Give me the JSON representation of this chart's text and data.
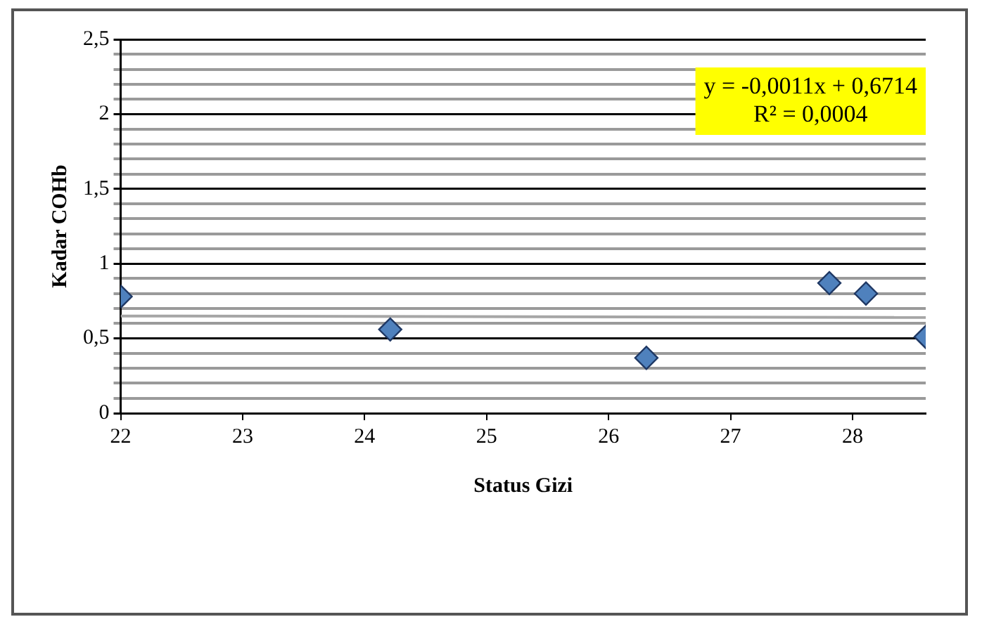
{
  "chart_data": {
    "type": "scatter",
    "xlabel": "Status Gizi",
    "ylabel": "Kadar COHb",
    "x": [
      22,
      24.21,
      26.31,
      27.81,
      28.11,
      28.6
    ],
    "series": [
      {
        "color": "#4f81bd",
        "values": [
          0.78,
          0.56,
          0.37,
          0.87,
          0.8,
          0.51
        ],
        "marker": "diamond"
      },
      {
        "type": "line",
        "color": "#a6a6a6",
        "x": [
          22,
          28.6
        ],
        "values": [
          0.65,
          0.64
        ],
        "marker": "none"
      }
    ],
    "xlim": [
      22,
      28.6
    ],
    "xticks": [
      22,
      23,
      24,
      25,
      26,
      27,
      28
    ],
    "ylim": [
      0,
      2.5
    ],
    "yticks": [
      0,
      {
        "value": 0.1,
        "label": null
      },
      {
        "value": 0.2,
        "label": null
      },
      {
        "value": 0.3,
        "label": null
      },
      {
        "value": 0.4,
        "label": null
      },
      {
        "value": 0.5,
        "label": "0,5"
      },
      {
        "value": 0.6,
        "label": null
      },
      {
        "value": 0.7,
        "label": null
      },
      {
        "value": 0.8,
        "label": null
      },
      {
        "value": 0.9,
        "label": null
      },
      1,
      {
        "value": 1.1,
        "label": null
      },
      {
        "value": 1.2,
        "label": null
      },
      {
        "value": 1.3,
        "label": null
      },
      {
        "value": 1.4,
        "label": null
      },
      {
        "value": 1.5,
        "label": "1,5"
      },
      {
        "value": 1.6,
        "label": null
      },
      {
        "value": 1.7,
        "label": null
      },
      {
        "value": 1.8,
        "label": null
      },
      {
        "value": 1.9,
        "label": null
      },
      2,
      {
        "value": 2.1,
        "label": null
      },
      {
        "value": 2.2,
        "label": null
      },
      {
        "value": 2.3,
        "label": null
      },
      {
        "value": 2.4,
        "label": null
      },
      {
        "value": 2.5,
        "label": "2,5"
      }
    ],
    "grid": "y",
    "legend": false,
    "annotations": [
      "y = -0,0011x + 0,6714\nR² = 0,0004"
    ]
  }
}
